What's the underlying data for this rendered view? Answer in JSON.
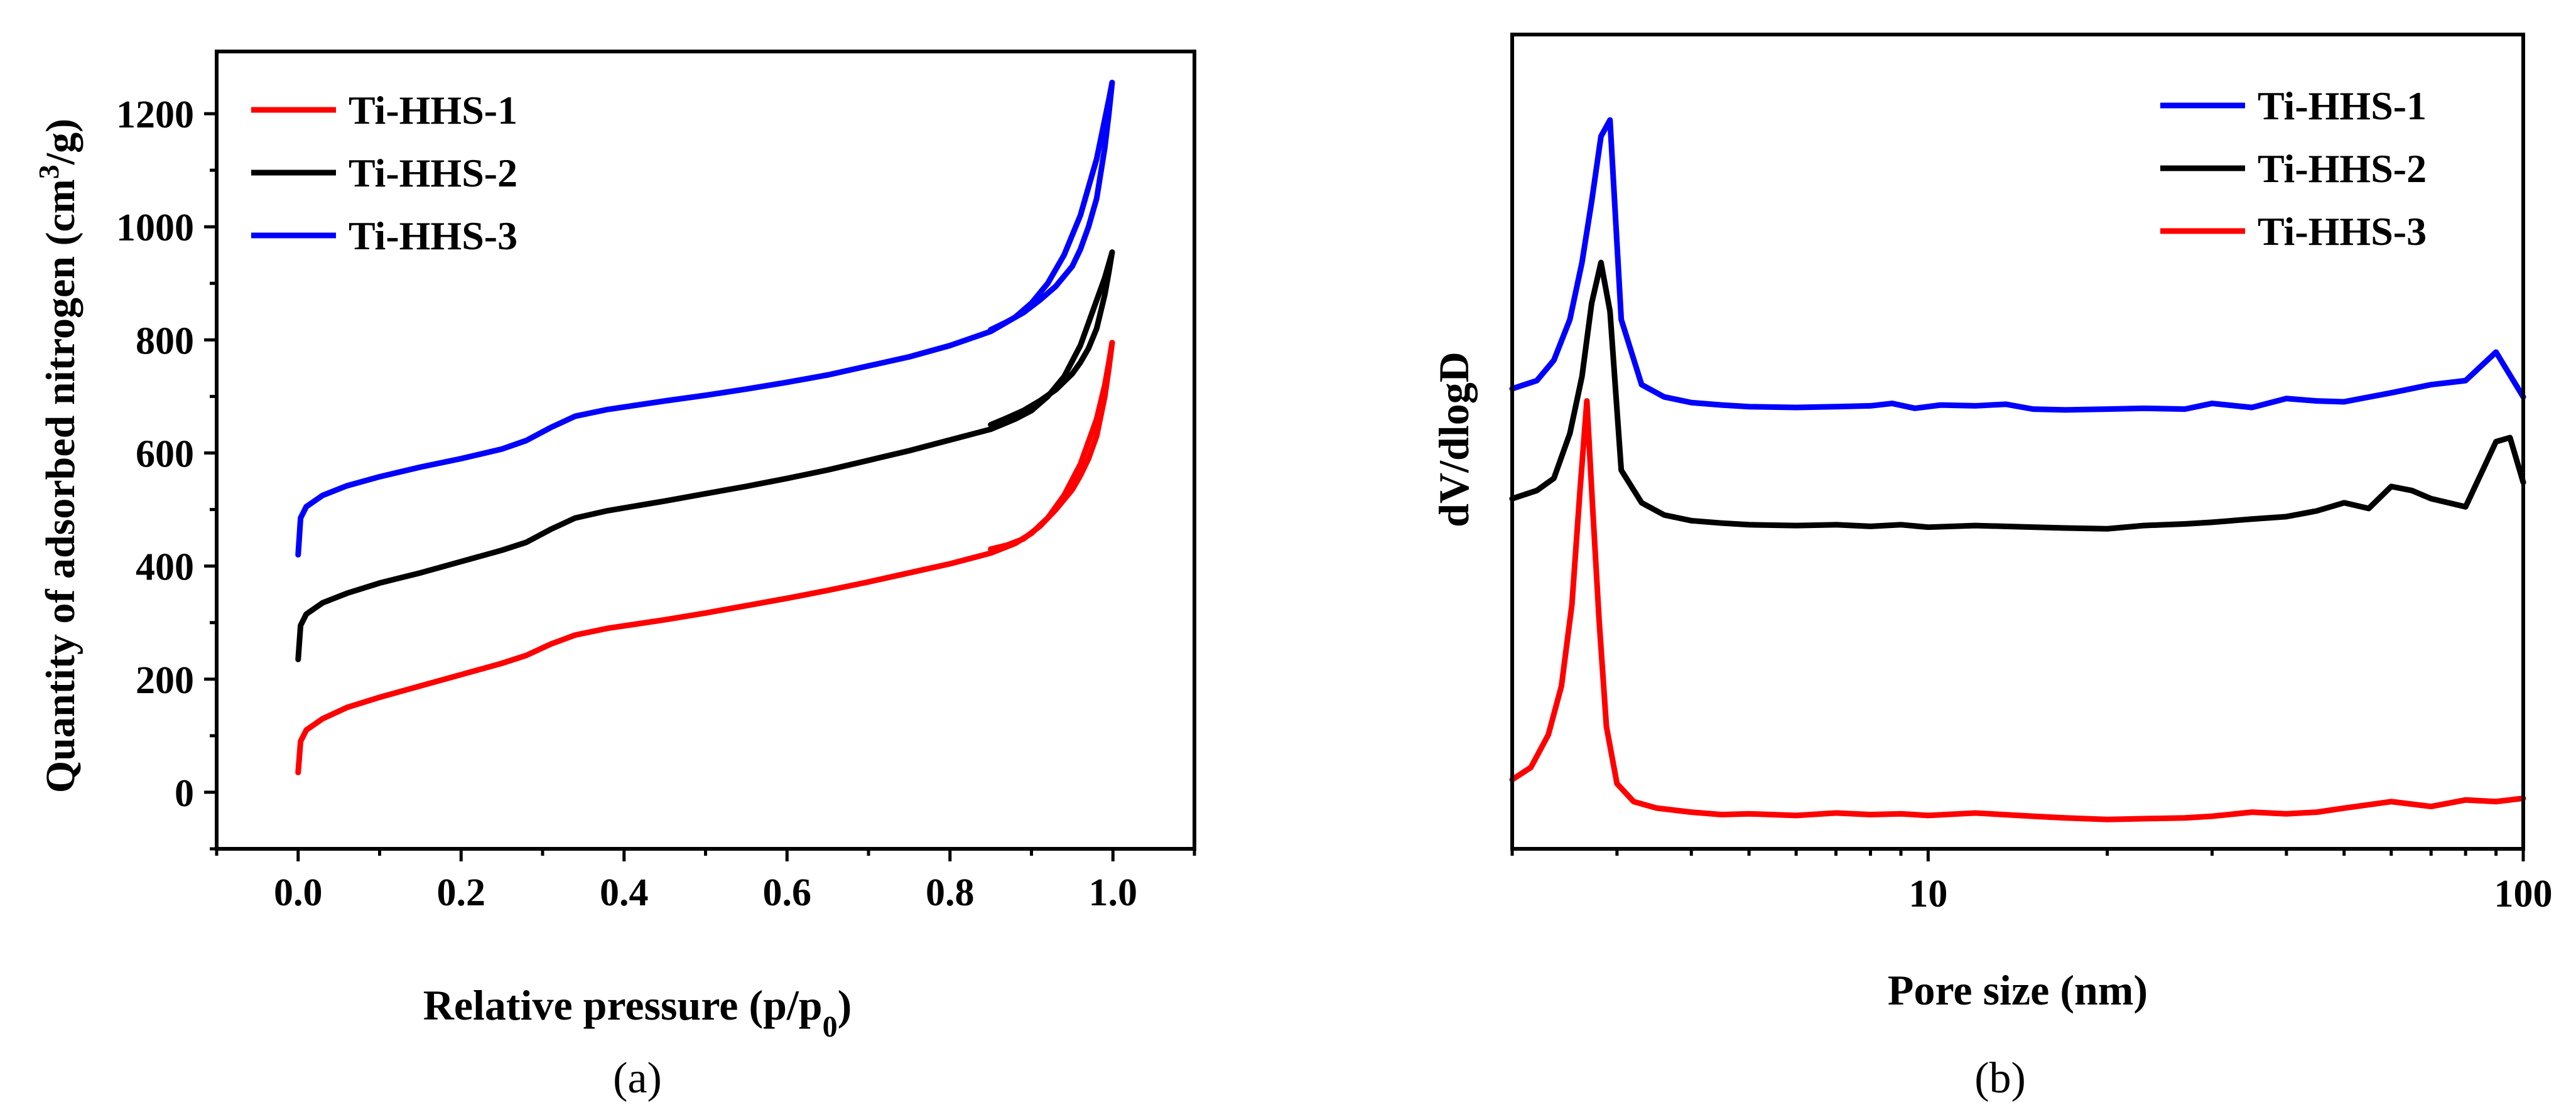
{
  "chart_data": [
    {
      "id": "a",
      "type": "line",
      "panel_label": "(a)",
      "xlabel": "Relative pressure (p/p",
      "xlabel_sub": "0",
      "xlabel_end": ")",
      "ylabel": "Quantity of adsorbed nitrogen (cm",
      "ylabel_sup": "3",
      "ylabel_end": "/g)",
      "xlim": [
        -0.1,
        1.1
      ],
      "ylim": [
        -100,
        1310
      ],
      "xticks": [
        0.0,
        0.2,
        0.4,
        0.6,
        0.8,
        1.0
      ],
      "xtick_labels": [
        "0.0",
        "0.2",
        "0.4",
        "0.6",
        "0.8",
        "1.0"
      ],
      "yticks": [
        0,
        200,
        400,
        600,
        800,
        1000,
        1200
      ],
      "ytick_labels": [
        "0",
        "200",
        "400",
        "600",
        "800",
        "1000",
        "1200"
      ],
      "legend_position": "top-left",
      "series": [
        {
          "name": "Ti-HHS-1",
          "color": "#ff0000",
          "x": [
            0.0,
            0.003,
            0.01,
            0.03,
            0.06,
            0.1,
            0.15,
            0.2,
            0.25,
            0.28,
            0.31,
            0.34,
            0.38,
            0.45,
            0.5,
            0.55,
            0.6,
            0.65,
            0.7,
            0.75,
            0.8,
            0.85,
            0.88,
            0.9,
            0.92,
            0.94,
            0.96,
            0.97,
            0.98,
            0.99,
            0.995,
            0.999
          ],
          "y": [
            35,
            90,
            110,
            130,
            150,
            168,
            188,
            208,
            228,
            242,
            262,
            278,
            290,
            305,
            317,
            330,
            343,
            357,
            372,
            388,
            404,
            423,
            440,
            458,
            485,
            525,
            580,
            620,
            660,
            720,
            760,
            795
          ],
          "x_desorption": [
            0.999,
            0.995,
            0.99,
            0.98,
            0.97,
            0.96,
            0.95,
            0.93,
            0.91,
            0.89,
            0.87,
            0.85
          ],
          "y_desorption": [
            795,
            750,
            700,
            630,
            590,
            560,
            535,
            500,
            470,
            448,
            437,
            430
          ]
        },
        {
          "name": "Ti-HHS-2",
          "color": "#000000",
          "x": [
            0.0,
            0.003,
            0.01,
            0.03,
            0.06,
            0.1,
            0.15,
            0.2,
            0.25,
            0.28,
            0.31,
            0.34,
            0.38,
            0.45,
            0.5,
            0.55,
            0.6,
            0.65,
            0.7,
            0.75,
            0.8,
            0.85,
            0.88,
            0.9,
            0.92,
            0.94,
            0.96,
            0.97,
            0.98,
            0.99,
            0.995,
            0.999
          ],
          "y": [
            235,
            295,
            315,
            335,
            352,
            370,
            388,
            408,
            428,
            442,
            465,
            485,
            498,
            515,
            528,
            541,
            555,
            570,
            587,
            604,
            623,
            642,
            660,
            675,
            700,
            735,
            790,
            830,
            870,
            910,
            935,
            955
          ],
          "x_desorption": [
            0.999,
            0.995,
            0.99,
            0.98,
            0.97,
            0.96,
            0.95,
            0.93,
            0.91,
            0.89,
            0.87,
            0.85
          ],
          "y_desorption": [
            955,
            920,
            880,
            820,
            785,
            760,
            740,
            712,
            692,
            675,
            662,
            650
          ]
        },
        {
          "name": "Ti-HHS-3",
          "color": "#0000ff",
          "x": [
            0.0,
            0.003,
            0.01,
            0.03,
            0.06,
            0.1,
            0.15,
            0.2,
            0.25,
            0.28,
            0.31,
            0.34,
            0.38,
            0.45,
            0.5,
            0.55,
            0.6,
            0.65,
            0.7,
            0.75,
            0.8,
            0.85,
            0.88,
            0.9,
            0.92,
            0.94,
            0.96,
            0.97,
            0.98,
            0.99,
            0.995,
            0.999
          ],
          "y": [
            420,
            485,
            505,
            525,
            542,
            558,
            575,
            590,
            607,
            622,
            645,
            665,
            677,
            692,
            702,
            713,
            725,
            738,
            754,
            770,
            790,
            815,
            840,
            865,
            900,
            950,
            1020,
            1070,
            1120,
            1190,
            1225,
            1255
          ],
          "x_desorption": [
            0.999,
            0.995,
            0.99,
            0.98,
            0.97,
            0.96,
            0.95,
            0.93,
            0.91,
            0.89,
            0.87,
            0.85
          ],
          "y_desorption": [
            1255,
            1200,
            1140,
            1050,
            1000,
            960,
            930,
            895,
            870,
            848,
            832,
            818
          ]
        }
      ]
    },
    {
      "id": "b",
      "type": "line",
      "panel_label": "(b)",
      "xlabel": "Pore size (nm)",
      "ylabel": "dV/dlogD",
      "xscale": "log",
      "xlim": [
        2,
        100
      ],
      "ylim": [
        0,
        1
      ],
      "xticks": [
        10,
        100
      ],
      "xtick_labels": [
        "10",
        "100"
      ],
      "yticks": [],
      "legend_position": "top-right",
      "series": [
        {
          "name": "Ti-HHS-1",
          "color": "#0000ff",
          "x": [
            2.0,
            2.2,
            2.35,
            2.5,
            2.62,
            2.72,
            2.82,
            2.92,
            3.05,
            3.3,
            3.6,
            4,
            4.5,
            5,
            6,
            7,
            8,
            8.7,
            9.5,
            10.5,
            12,
            13.5,
            15,
            17,
            20,
            23,
            27,
            30,
            35,
            40,
            45,
            50,
            60,
            70,
            80,
            90,
            100
          ],
          "y": [
            0.565,
            0.575,
            0.6,
            0.65,
            0.72,
            0.795,
            0.875,
            0.895,
            0.65,
            0.57,
            0.555,
            0.548,
            0.545,
            0.543,
            0.542,
            0.543,
            0.544,
            0.547,
            0.541,
            0.545,
            0.544,
            0.546,
            0.54,
            0.539,
            0.54,
            0.541,
            0.54,
            0.547,
            0.542,
            0.553,
            0.55,
            0.549,
            0.56,
            0.57,
            0.575,
            0.61,
            0.555
          ]
        },
        {
          "name": "Ti-HHS-2",
          "color": "#000000",
          "x": [
            2.0,
            2.2,
            2.35,
            2.5,
            2.62,
            2.72,
            2.82,
            2.92,
            3.05,
            3.3,
            3.6,
            4,
            4.5,
            5,
            6,
            7,
            8,
            9,
            10,
            12,
            15,
            17,
            20,
            23,
            27,
            30,
            35,
            40,
            45,
            50,
            55,
            60,
            65,
            70,
            80,
            90,
            95,
            100
          ],
          "y": [
            0.43,
            0.44,
            0.455,
            0.51,
            0.58,
            0.67,
            0.72,
            0.66,
            0.465,
            0.425,
            0.41,
            0.403,
            0.4,
            0.398,
            0.397,
            0.398,
            0.396,
            0.398,
            0.395,
            0.397,
            0.395,
            0.394,
            0.393,
            0.397,
            0.399,
            0.401,
            0.405,
            0.408,
            0.415,
            0.425,
            0.418,
            0.445,
            0.44,
            0.43,
            0.42,
            0.5,
            0.505,
            0.45
          ]
        },
        {
          "name": "Ti-HHS-3",
          "color": "#ff0000",
          "x": [
            2.0,
            2.15,
            2.3,
            2.42,
            2.52,
            2.6,
            2.67,
            2.73,
            2.8,
            2.88,
            3.0,
            3.2,
            3.5,
            4,
            4.5,
            5,
            6,
            7,
            8,
            9,
            10,
            12,
            15,
            17,
            20,
            23,
            27,
            30,
            35,
            40,
            45,
            50,
            60,
            70,
            80,
            90,
            100
          ],
          "y": [
            0.085,
            0.1,
            0.14,
            0.2,
            0.3,
            0.44,
            0.55,
            0.42,
            0.28,
            0.15,
            0.08,
            0.058,
            0.05,
            0.045,
            0.042,
            0.043,
            0.041,
            0.044,
            0.042,
            0.043,
            0.041,
            0.044,
            0.04,
            0.038,
            0.036,
            0.037,
            0.038,
            0.04,
            0.045,
            0.043,
            0.045,
            0.05,
            0.058,
            0.052,
            0.06,
            0.058,
            0.062
          ]
        }
      ]
    }
  ]
}
